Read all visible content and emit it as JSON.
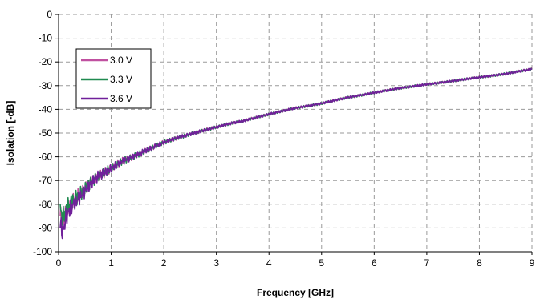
{
  "chart_data": {
    "type": "line",
    "title": "",
    "xlabel": "Frequency [GHz]",
    "ylabel": "Isolation [-dB]",
    "xlim": [
      0,
      9
    ],
    "ylim": [
      -100,
      0
    ],
    "xticks": [
      "0",
      "1",
      "2",
      "3",
      "4",
      "5",
      "6",
      "7",
      "8",
      "9"
    ],
    "yticks": [
      "0",
      "-10",
      "-20",
      "-30",
      "-40",
      "-50",
      "-60",
      "-70",
      "-80",
      "-90",
      "-100"
    ],
    "grid": true,
    "legend_position": "top-left",
    "series": [
      {
        "name": "3.0 V",
        "color": "#c050a0",
        "x": [
          0.03,
          0.08,
          0.15,
          0.25,
          0.4,
          0.55,
          0.7,
          0.85,
          1.0,
          1.2,
          1.4,
          1.6,
          1.8,
          2.0,
          2.25,
          2.5,
          2.75,
          3.0,
          3.25,
          3.5,
          3.75,
          4.0,
          4.5,
          5.0,
          5.5,
          6.0,
          6.5,
          7.0,
          7.5,
          8.0,
          8.5,
          9.0
        ],
        "y": [
          -85,
          -88,
          -83,
          -80,
          -76,
          -72,
          -69,
          -67,
          -65,
          -62,
          -60,
          -58,
          -56,
          -54,
          -52,
          -50.5,
          -49,
          -47.5,
          -46,
          -45,
          -43.5,
          -42,
          -39.5,
          -37.5,
          -35,
          -33,
          -31,
          -29.5,
          -28,
          -26.5,
          -25,
          -23
        ]
      },
      {
        "name": "3.3 V",
        "color": "#208a50",
        "x": [
          0.03,
          0.08,
          0.15,
          0.25,
          0.4,
          0.55,
          0.7,
          0.85,
          1.0,
          1.2,
          1.4,
          1.6,
          1.8,
          2.0,
          2.25,
          2.5,
          2.75,
          3.0,
          3.25,
          3.5,
          3.75,
          4.0,
          4.5,
          5.0,
          5.5,
          6.0,
          6.5,
          7.0,
          7.5,
          8.0,
          8.5,
          9.0
        ],
        "y": [
          -82,
          -86,
          -82,
          -79,
          -76,
          -72,
          -69,
          -67,
          -65,
          -62,
          -60,
          -58,
          -56,
          -54,
          -52,
          -50.5,
          -49,
          -47.5,
          -46,
          -45,
          -43.5,
          -42,
          -39.5,
          -37.5,
          -35,
          -33,
          -31,
          -29.5,
          -28,
          -26.5,
          -25,
          -23
        ]
      },
      {
        "name": "3.6 V",
        "color": "#70209a",
        "x": [
          0.03,
          0.08,
          0.15,
          0.25,
          0.4,
          0.55,
          0.7,
          0.85,
          1.0,
          1.2,
          1.4,
          1.6,
          1.8,
          2.0,
          2.25,
          2.5,
          2.75,
          3.0,
          3.25,
          3.5,
          3.75,
          4.0,
          4.5,
          5.0,
          5.5,
          6.0,
          6.5,
          7.0,
          7.5,
          8.0,
          8.5,
          9.0
        ],
        "y": [
          -88,
          -92,
          -85,
          -81,
          -77,
          -73,
          -69,
          -67,
          -65,
          -62,
          -60,
          -58,
          -56,
          -54,
          -52,
          -50.5,
          -49,
          -47.5,
          -46,
          -45,
          -43.5,
          -42,
          -39.5,
          -37.5,
          -35,
          -33,
          -31,
          -29.5,
          -28,
          -26.5,
          -25,
          -23
        ]
      }
    ]
  }
}
